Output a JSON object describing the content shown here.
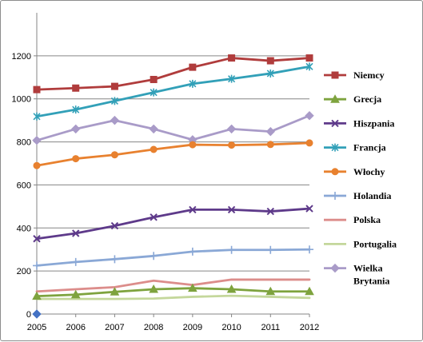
{
  "chart_data": {
    "type": "line",
    "title": "",
    "xlabel": "",
    "ylabel": "",
    "x": [
      "2005",
      "2006",
      "2007",
      "2008",
      "2009",
      "2010",
      "2011",
      "2012"
    ],
    "ylim": [
      0,
      1400
    ],
    "yticks": [
      0,
      200,
      400,
      600,
      800,
      1000,
      1200
    ],
    "grid": "horizontal",
    "legend_position": "right",
    "series": [
      {
        "name": "Niemcy",
        "color": "#b03c3c",
        "marker": "square",
        "values": [
          1043,
          1050,
          1058,
          1090,
          1147,
          1190,
          1177,
          1190
        ]
      },
      {
        "name": "Grecja",
        "color": "#7ea33e",
        "marker": "triangle",
        "values": [
          83,
          90,
          103,
          115,
          120,
          115,
          105,
          105
        ]
      },
      {
        "name": "Hiszpania",
        "color": "#5e3a8a",
        "marker": "x",
        "values": [
          350,
          375,
          410,
          450,
          485,
          485,
          477,
          490
        ]
      },
      {
        "name": "Francja",
        "color": "#32a0b8",
        "marker": "star",
        "values": [
          918,
          950,
          990,
          1030,
          1070,
          1093,
          1118,
          1150
        ]
      },
      {
        "name": "Włochy",
        "color": "#e8812f",
        "marker": "circle",
        "values": [
          690,
          722,
          740,
          765,
          787,
          785,
          788,
          795
        ]
      },
      {
        "name": "Holandia",
        "color": "#8aa8d6",
        "marker": "plus",
        "values": [
          225,
          242,
          255,
          270,
          290,
          298,
          298,
          300
        ]
      },
      {
        "name": "Polska",
        "color": "#dc8d8b",
        "marker": "none",
        "values": [
          105,
          115,
          125,
          155,
          135,
          160,
          160,
          160
        ]
      },
      {
        "name": "Portugalia",
        "color": "#c4d79b",
        "marker": "none",
        "values": [
          70,
          70,
          70,
          72,
          80,
          85,
          80,
          75
        ]
      },
      {
        "name": "Wielka Brytania",
        "color": "#a99bc8",
        "marker": "diamond",
        "values": [
          807,
          860,
          900,
          860,
          810,
          860,
          848,
          922
        ]
      }
    ],
    "legend": [
      {
        "label_lines": [
          "Niemcy"
        ]
      },
      {
        "label_lines": [
          "Grecja"
        ]
      },
      {
        "label_lines": [
          "Hiszpania"
        ]
      },
      {
        "label_lines": [
          "Francja"
        ]
      },
      {
        "label_lines": [
          "Włochy"
        ]
      },
      {
        "label_lines": [
          "Holandia"
        ]
      },
      {
        "label_lines": [
          "Polska"
        ]
      },
      {
        "label_lines": [
          "Portugalia"
        ]
      },
      {
        "label_lines": [
          "Wielka",
          "Brytania"
        ]
      }
    ],
    "origin_marker": {
      "x": "2005",
      "y": 0,
      "color": "#4472c4",
      "shape": "diamond"
    }
  }
}
